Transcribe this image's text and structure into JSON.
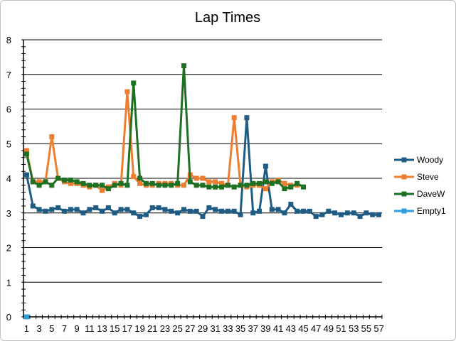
{
  "chart_data": {
    "type": "line",
    "title": "Lap Times",
    "xlabel": "",
    "ylabel": "",
    "ylim": [
      0,
      8
    ],
    "yticks": [
      0,
      1,
      2,
      3,
      4,
      5,
      6,
      7,
      8
    ],
    "x": [
      1,
      2,
      3,
      4,
      5,
      6,
      7,
      8,
      9,
      10,
      11,
      12,
      13,
      14,
      15,
      16,
      17,
      18,
      19,
      20,
      21,
      22,
      23,
      24,
      25,
      26,
      27,
      28,
      29,
      30,
      31,
      32,
      33,
      34,
      35,
      36,
      37,
      38,
      39,
      40,
      41,
      42,
      43,
      44,
      45,
      46,
      47,
      48,
      49,
      50,
      51,
      52,
      53,
      54,
      55,
      56,
      57
    ],
    "xtick_labels": [
      1,
      3,
      5,
      7,
      9,
      11,
      13,
      15,
      17,
      19,
      21,
      23,
      25,
      27,
      29,
      31,
      33,
      35,
      37,
      39,
      41,
      43,
      45,
      47,
      49,
      51,
      53,
      55,
      57
    ],
    "grid": "horizontal",
    "legend_position": "right",
    "series": [
      {
        "name": "Woody",
        "color": "#1f5c84",
        "values": [
          4.1,
          3.2,
          3.1,
          3.05,
          3.1,
          3.15,
          3.05,
          3.1,
          3.1,
          3.0,
          3.1,
          3.15,
          3.05,
          3.15,
          3.0,
          3.1,
          3.1,
          3.0,
          2.9,
          2.95,
          3.15,
          3.15,
          3.1,
          3.05,
          3.0,
          3.1,
          3.05,
          3.05,
          2.9,
          3.15,
          3.1,
          3.05,
          3.05,
          3.05,
          2.95,
          5.75,
          3.0,
          3.05,
          4.35,
          3.1,
          3.1,
          3.0,
          3.25,
          3.05,
          3.05,
          3.05,
          2.9,
          2.95,
          3.05,
          3.0,
          2.95,
          3.0,
          3.0,
          2.9,
          3.0,
          2.95,
          2.95
        ]
      },
      {
        "name": "Steve",
        "color": "#ed7d31",
        "values": [
          4.8,
          3.9,
          3.9,
          3.9,
          5.2,
          4.0,
          3.9,
          3.85,
          3.85,
          3.8,
          3.75,
          3.8,
          3.65,
          3.75,
          3.85,
          3.8,
          6.5,
          4.05,
          3.85,
          3.8,
          3.8,
          3.85,
          3.85,
          3.85,
          3.8,
          3.8,
          4.1,
          4.0,
          4.0,
          3.9,
          3.9,
          3.85,
          3.8,
          5.75,
          3.8,
          3.75,
          3.8,
          3.8,
          3.7,
          3.9,
          3.95,
          3.85,
          3.8,
          3.8,
          null,
          null,
          null,
          null,
          null,
          null,
          null,
          null,
          null,
          null,
          null,
          null,
          null
        ]
      },
      {
        "name": "DaveW",
        "color": "#1e7022",
        "values": [
          4.7,
          3.9,
          3.8,
          3.9,
          3.8,
          4.0,
          3.95,
          3.95,
          3.9,
          3.85,
          3.8,
          3.8,
          3.8,
          3.7,
          3.8,
          3.85,
          3.8,
          6.75,
          4.0,
          3.85,
          3.85,
          3.8,
          3.8,
          3.8,
          3.85,
          7.25,
          3.9,
          3.8,
          3.8,
          3.75,
          3.75,
          3.75,
          3.8,
          3.75,
          3.8,
          3.8,
          3.85,
          3.85,
          3.9,
          3.85,
          3.9,
          3.7,
          3.75,
          3.85,
          3.75,
          null,
          null,
          null,
          null,
          null,
          null,
          null,
          null,
          null,
          null,
          null,
          null
        ]
      },
      {
        "name": "Empty1",
        "color": "#2e9fd8",
        "values": [
          0,
          null,
          null,
          null,
          null,
          null,
          null,
          null,
          null,
          null,
          null,
          null,
          null,
          null,
          null,
          null,
          null,
          null,
          null,
          null,
          null,
          null,
          null,
          null,
          null,
          null,
          null,
          null,
          null,
          null,
          null,
          null,
          null,
          null,
          null,
          null,
          null,
          null,
          null,
          null,
          null,
          null,
          null,
          null,
          null,
          null,
          null,
          null,
          null,
          null,
          null,
          null,
          null,
          null,
          null,
          null,
          null
        ]
      }
    ]
  }
}
